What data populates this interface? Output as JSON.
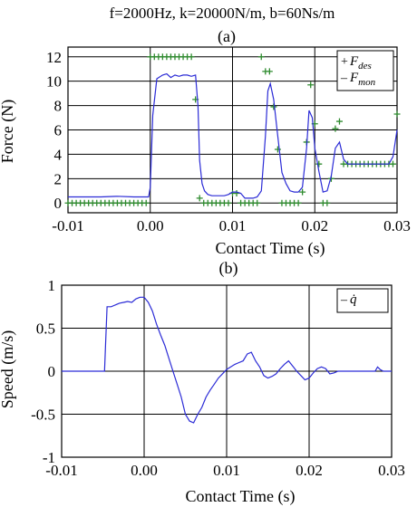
{
  "figure": {
    "title": "f=2000Hz, k=20000N/m, b=60Ns/m"
  },
  "colors": {
    "desired": "#2e8b2e",
    "measured": "#2b2bd6",
    "grid": "#000000"
  },
  "chart_data": [
    {
      "type": "line",
      "panel_label": "(a)",
      "xlabel": "Contact Time (s)",
      "ylabel": "Force (N)",
      "xlim": [
        -0.01,
        0.03
      ],
      "ylim": [
        -0.8,
        12.8
      ],
      "xticks": [
        -0.01,
        0.0,
        0.01,
        0.02,
        0.03
      ],
      "xtick_labels": [
        "-0.01",
        "0.00",
        "0.01",
        "0.02",
        "0.03"
      ],
      "yticks": [
        0,
        2,
        4,
        6,
        8,
        10,
        12
      ],
      "ytick_labels": [
        "0",
        "2",
        "4",
        "6",
        "8",
        "10",
        "12"
      ],
      "grid": true,
      "legend": {
        "placement": "top-right",
        "entries": [
          {
            "marker": "+",
            "text": "F",
            "sub": "des"
          },
          {
            "marker": "–",
            "text": "F",
            "sub": "mon"
          }
        ]
      },
      "series": [
        {
          "key": "F_des",
          "style": "markers",
          "x": [
            -0.01,
            -0.0095,
            -0.009,
            -0.0085,
            -0.008,
            -0.0075,
            -0.007,
            -0.0065,
            -0.006,
            -0.0055,
            -0.005,
            -0.0045,
            -0.004,
            -0.0035,
            -0.003,
            -0.0025,
            -0.002,
            -0.0015,
            -0.001,
            -0.0005,
            0.0,
            0.0005,
            0.001,
            0.0015,
            0.002,
            0.0025,
            0.003,
            0.0035,
            0.004,
            0.0045,
            0.005,
            0.0055,
            0.006,
            0.0065,
            0.007,
            0.0075,
            0.008,
            0.0085,
            0.009,
            0.0095,
            0.01,
            0.0105,
            0.011,
            0.0115,
            0.012,
            0.0125,
            0.013,
            0.0135,
            0.014,
            0.0145,
            0.015,
            0.0155,
            0.016,
            0.0165,
            0.017,
            0.0175,
            0.018,
            0.0185,
            0.019,
            0.0195,
            0.02,
            0.0205,
            0.021,
            0.0215,
            0.022,
            0.0225,
            0.023,
            0.0235,
            0.024,
            0.0245,
            0.025,
            0.0255,
            0.026,
            0.0265,
            0.027,
            0.0275,
            0.028,
            0.0285,
            0.029,
            0.0295,
            0.03
          ],
          "y": [
            0,
            0,
            0,
            0,
            0,
            0,
            0,
            0,
            0,
            0,
            0,
            0,
            0,
            0,
            0,
            0,
            0,
            0,
            0,
            0,
            12,
            12,
            12,
            12,
            12,
            12,
            12,
            12,
            12,
            12,
            12,
            8.5,
            0.4,
            0,
            0,
            0,
            0,
            0,
            0,
            0,
            0.8,
            0.8,
            0,
            0,
            0,
            0,
            0,
            12,
            10.8,
            10.8,
            7.9,
            4.4,
            0,
            0,
            0,
            0,
            0,
            0.9,
            5,
            9.7,
            6.5,
            3.2,
            0,
            0,
            2,
            6.1,
            6.7,
            3.2,
            3.2,
            3.2,
            3.2,
            3.2,
            3.2,
            3.2,
            3.2,
            3.2,
            3.2,
            3.2,
            3.2,
            3.2,
            7.3
          ]
        },
        {
          "key": "F_mon",
          "style": "line",
          "x": [
            -0.01,
            -0.008,
            -0.006,
            -0.004,
            -0.002,
            -0.0005,
            -0.0002,
            0.0,
            0.0003,
            0.0008,
            0.0015,
            0.002,
            0.0025,
            0.003,
            0.0035,
            0.004,
            0.0045,
            0.005,
            0.0055,
            0.0058,
            0.006,
            0.0063,
            0.0066,
            0.007,
            0.0075,
            0.008,
            0.0085,
            0.009,
            0.0095,
            0.01,
            0.0105,
            0.011,
            0.0115,
            0.012,
            0.0125,
            0.013,
            0.0135,
            0.014,
            0.0143,
            0.0146,
            0.015,
            0.0155,
            0.016,
            0.0165,
            0.017,
            0.0175,
            0.018,
            0.0185,
            0.019,
            0.0193,
            0.0197,
            0.02,
            0.0205,
            0.021,
            0.0215,
            0.022,
            0.0225,
            0.023,
            0.0235,
            0.024,
            0.025,
            0.026,
            0.027,
            0.028,
            0.029,
            0.0295,
            0.03
          ],
          "y": [
            0.5,
            0.5,
            0.5,
            0.55,
            0.5,
            0.5,
            0.5,
            1.3,
            7.2,
            10.2,
            10.5,
            10.6,
            10.3,
            10.5,
            10.4,
            10.5,
            10.5,
            10.4,
            10.5,
            8.0,
            3.5,
            1.6,
            1.0,
            0.7,
            0.6,
            0.6,
            0.6,
            0.6,
            0.7,
            0.9,
            0.9,
            0.8,
            0.4,
            0.4,
            0.4,
            0.5,
            1.0,
            5.5,
            9.2,
            9.8,
            8.5,
            5.5,
            2.5,
            1.6,
            1.0,
            0.9,
            0.9,
            1.3,
            4.5,
            7.6,
            7.0,
            4.5,
            2.6,
            0.9,
            1.0,
            2.2,
            4.5,
            5.0,
            3.6,
            3.2,
            3.2,
            3.2,
            3.2,
            3.2,
            3.2,
            3.8,
            6.0
          ]
        }
      ]
    },
    {
      "type": "line",
      "panel_label": "(b)",
      "xlabel": "Contact Time (s)",
      "ylabel": "Speed (m/s)",
      "xlim": [
        -0.01,
        0.03
      ],
      "ylim": [
        -1,
        1
      ],
      "xticks": [
        -0.01,
        0.0,
        0.01,
        0.02,
        0.03
      ],
      "xtick_labels": [
        "-0.01",
        "0.00",
        "0.01",
        "0.02",
        "0.03"
      ],
      "yticks": [
        -1,
        -0.5,
        0,
        0.5,
        1
      ],
      "ytick_labels": [
        "-1",
        "-0.5",
        "0",
        "0.5",
        "1"
      ],
      "grid": true,
      "legend": {
        "placement": "top-right",
        "entries": [
          {
            "marker": "–",
            "text": "q̇"
          }
        ]
      },
      "series": [
        {
          "key": "q_dot",
          "style": "line",
          "x": [
            -0.01,
            -0.006,
            -0.0048,
            -0.0045,
            -0.004,
            -0.003,
            -0.0025,
            -0.002,
            -0.0015,
            -0.001,
            -0.0005,
            0.0,
            0.0005,
            0.001,
            0.0015,
            0.002,
            0.0025,
            0.003,
            0.0035,
            0.004,
            0.0045,
            0.005,
            0.0055,
            0.006,
            0.0065,
            0.007,
            0.0075,
            0.008,
            0.0085,
            0.009,
            0.0095,
            0.01,
            0.0105,
            0.011,
            0.0115,
            0.012,
            0.0125,
            0.013,
            0.0135,
            0.014,
            0.0145,
            0.015,
            0.0155,
            0.016,
            0.0165,
            0.017,
            0.0175,
            0.018,
            0.0185,
            0.019,
            0.0195,
            0.02,
            0.0205,
            0.021,
            0.0215,
            0.022,
            0.0225,
            0.023,
            0.0235,
            0.024,
            0.025,
            0.026,
            0.027,
            0.028,
            0.0283,
            0.0286,
            0.029,
            0.03
          ],
          "y": [
            0,
            0,
            0,
            0.75,
            0.75,
            0.79,
            0.8,
            0.81,
            0.8,
            0.84,
            0.86,
            0.86,
            0.8,
            0.7,
            0.55,
            0.42,
            0.3,
            0.15,
            0.0,
            -0.15,
            -0.3,
            -0.5,
            -0.58,
            -0.6,
            -0.5,
            -0.42,
            -0.3,
            -0.22,
            -0.15,
            -0.08,
            -0.03,
            0.02,
            0.05,
            0.08,
            0.1,
            0.12,
            0.2,
            0.22,
            0.12,
            0.05,
            -0.05,
            -0.08,
            -0.06,
            -0.03,
            0.03,
            0.08,
            0.12,
            0.06,
            0.0,
            -0.05,
            -0.1,
            -0.08,
            -0.02,
            0.03,
            0.05,
            0.03,
            -0.03,
            -0.02,
            0.0,
            0.0,
            0.0,
            0.0,
            0.0,
            0.0,
            0.05,
            0.02,
            0.0,
            0.0
          ]
        }
      ]
    }
  ]
}
